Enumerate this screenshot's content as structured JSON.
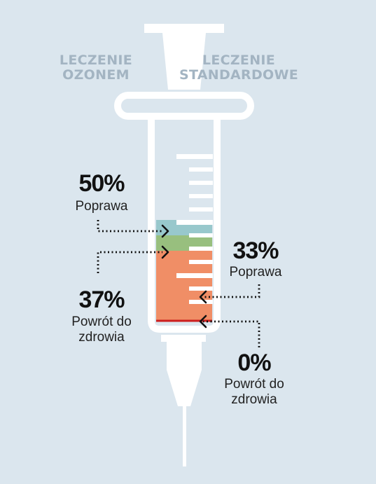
{
  "headers": {
    "left": "LECZENIE OZONEM",
    "right": "LECZENIE STANDARDOWE"
  },
  "chart_data": {
    "type": "bar",
    "categories": [
      "Poprawa",
      "Powrót do zdrowia"
    ],
    "series": [
      {
        "name": "LECZENIE OZONEM",
        "values": [
          50,
          37
        ]
      },
      {
        "name": "LECZENIE STANDARDOWE",
        "values": [
          33,
          0
        ]
      }
    ],
    "annotations": {
      "ozone_improvement": {
        "value": "50%",
        "label": "Poprawa"
      },
      "ozone_recovery": {
        "value": "37%",
        "label": "Powrót do zdrowia"
      },
      "standard_improvement": {
        "value": "33%",
        "label": "Poprawa"
      },
      "standard_recovery": {
        "value": "0%",
        "label": "Powrót do zdrowia"
      }
    }
  },
  "colors": {
    "background": "#dbe6ee",
    "syringe": "#ffffff",
    "improvement_band": "#98c8cc",
    "recovery_band": "#98bf7e",
    "base_fill": "#f08e66",
    "zero_line": "#cc1e1e",
    "header_text": "#a3b4c2"
  },
  "layout_hint": {
    "syringe_style": "outline",
    "leader_lines": "dotted"
  }
}
